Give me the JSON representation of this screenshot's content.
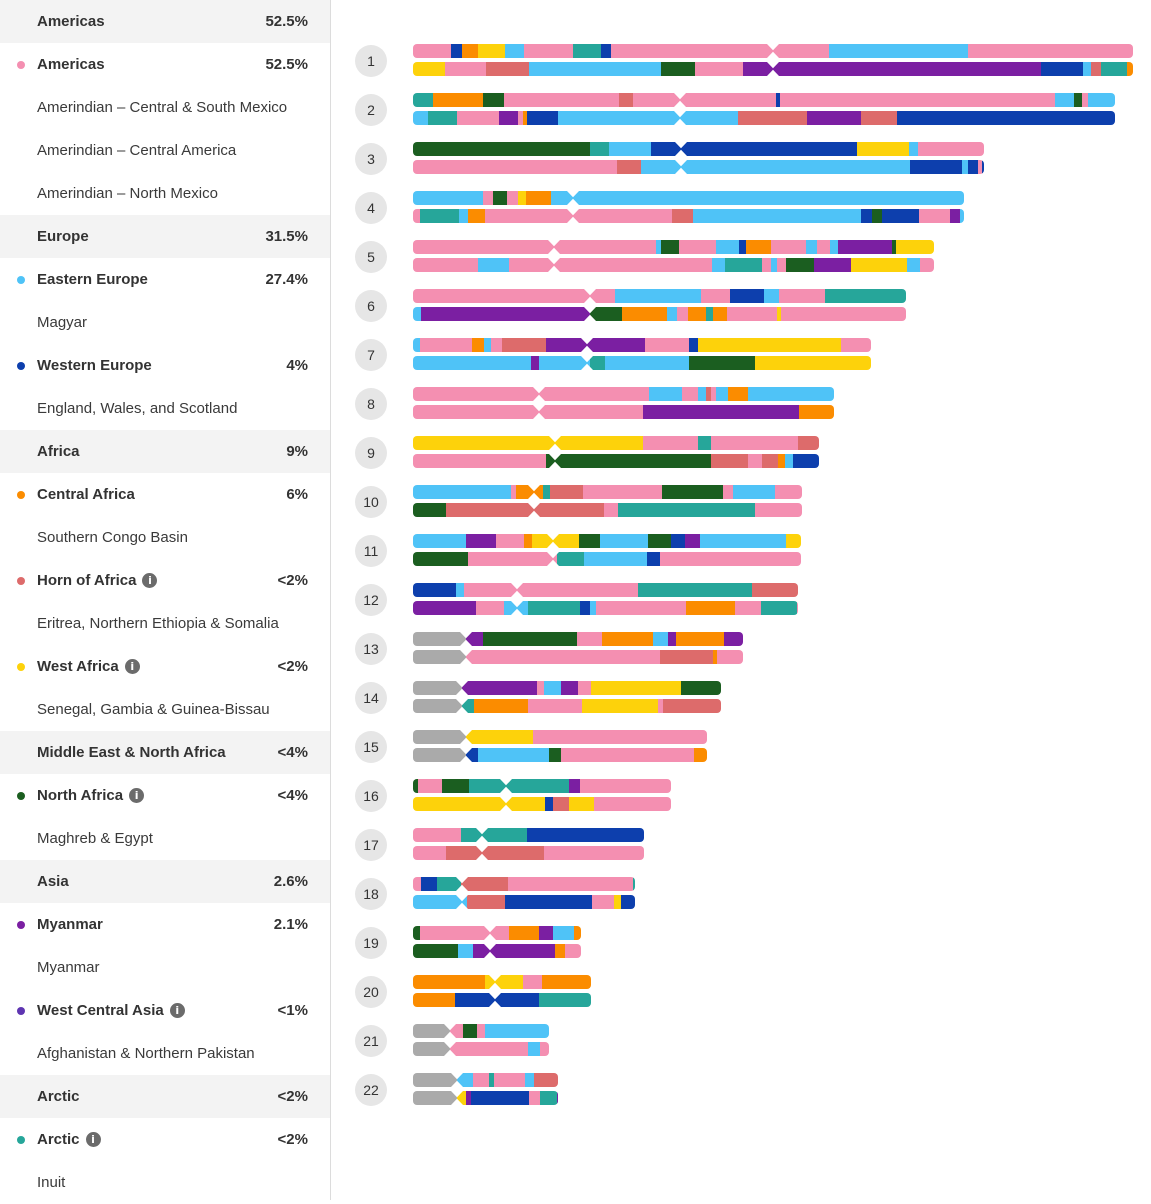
{
  "colors": {
    "pink": "#f48fb1",
    "lightblue": "#4fc3f7",
    "navy": "#0d3fad",
    "orange": "#fb8c00",
    "salmon": "#dd6b6b",
    "yellow": "#fdd20b",
    "green": "#1b5e20",
    "purple": "#7b1fa2",
    "teal": "#26a69a",
    "gray": "#aaaaaa"
  },
  "sidebar": {
    "rows": [
      {
        "type": "group",
        "label": "Americas",
        "pct": "52.5%"
      },
      {
        "type": "sub",
        "label": "Americas",
        "pct": "52.5%",
        "color": "#f48fb1"
      },
      {
        "type": "leaf",
        "label": "Amerindian – Central & South Mexico"
      },
      {
        "type": "leaf",
        "label": "Amerindian – Central America"
      },
      {
        "type": "leaf",
        "label": "Amerindian – North Mexico"
      },
      {
        "type": "group",
        "label": "Europe",
        "pct": "31.5%"
      },
      {
        "type": "sub",
        "label": "Eastern Europe",
        "pct": "27.4%",
        "color": "#4fc3f7"
      },
      {
        "type": "leaf",
        "label": "Magyar"
      },
      {
        "type": "sub",
        "label": "Western Europe",
        "pct": "4%",
        "color": "#0d3fad"
      },
      {
        "type": "leaf",
        "label": "England, Wales, and Scotland"
      },
      {
        "type": "group",
        "label": "Africa",
        "pct": "9%"
      },
      {
        "type": "sub",
        "label": "Central Africa",
        "pct": "6%",
        "color": "#fb8c00"
      },
      {
        "type": "leaf",
        "label": "Southern Congo Basin"
      },
      {
        "type": "sub",
        "label": "Horn of Africa",
        "pct": "<2%",
        "color": "#dd6b6b",
        "info": true
      },
      {
        "type": "leaf",
        "label": "Eritrea, Northern Ethiopia & Somalia"
      },
      {
        "type": "sub",
        "label": "West Africa",
        "pct": "<2%",
        "color": "#fdd20b",
        "info": true
      },
      {
        "type": "leaf",
        "label": "Senegal, Gambia & Guinea-Bissau"
      },
      {
        "type": "group",
        "label": "Middle East & North Africa",
        "pct": "<4%"
      },
      {
        "type": "sub",
        "label": "North Africa",
        "pct": "<4%",
        "color": "#1b5e20",
        "info": true
      },
      {
        "type": "leaf",
        "label": "Maghreb & Egypt"
      },
      {
        "type": "group",
        "label": "Asia",
        "pct": "2.6%"
      },
      {
        "type": "sub",
        "label": "Myanmar",
        "pct": "2.1%",
        "color": "#7b1fa2"
      },
      {
        "type": "leaf",
        "label": "Myanmar"
      },
      {
        "type": "sub",
        "label": "West Central Asia",
        "pct": "<1%",
        "color": "#5e35b1",
        "info": true
      },
      {
        "type": "leaf",
        "label": "Afghanistan & Northern Pakistan"
      },
      {
        "type": "group",
        "label": "Arctic",
        "pct": "<2%"
      },
      {
        "type": "sub",
        "label": "Arctic",
        "pct": "<2%",
        "color": "#26a69a",
        "info": true
      },
      {
        "type": "leaf",
        "label": "Inuit"
      }
    ]
  },
  "chromosomes": [
    {
      "num": "1",
      "length": 720,
      "centromere": 0.5
    },
    {
      "num": "2",
      "length": 702,
      "centromere": 0.38
    },
    {
      "num": "3",
      "length": 571,
      "centromere": 0.47
    },
    {
      "num": "4",
      "length": 551,
      "centromere": 0.29
    },
    {
      "num": "5",
      "length": 521,
      "centromere": 0.27
    },
    {
      "num": "6",
      "length": 493,
      "centromere": 0.36
    },
    {
      "num": "7",
      "length": 458,
      "centromere": 0.38
    },
    {
      "num": "8",
      "length": 421,
      "centromere": 0.3
    },
    {
      "num": "9",
      "length": 406,
      "centromere": 0.35
    },
    {
      "num": "10",
      "length": 389,
      "centromere": 0.31
    },
    {
      "num": "11",
      "length": 388,
      "centromere": 0.36
    },
    {
      "num": "12",
      "length": 385,
      "centromere": 0.27
    },
    {
      "num": "13",
      "length": 330,
      "centromere": 0.16
    },
    {
      "num": "14",
      "length": 308,
      "centromere": 0.16
    },
    {
      "num": "15",
      "length": 294,
      "centromere": 0.18
    },
    {
      "num": "16",
      "length": 258,
      "centromere": 0.36
    },
    {
      "num": "17",
      "length": 231,
      "centromere": 0.3
    },
    {
      "num": "18",
      "length": 222,
      "centromere": 0.22
    },
    {
      "num": "19",
      "length": 168,
      "centromere": 0.46
    },
    {
      "num": "20",
      "length": 178,
      "centromere": 0.46
    },
    {
      "num": "21",
      "length": 136,
      "centromere": 0.27
    },
    {
      "num": "22",
      "length": 145,
      "centromere": 0.3
    }
  ]
}
